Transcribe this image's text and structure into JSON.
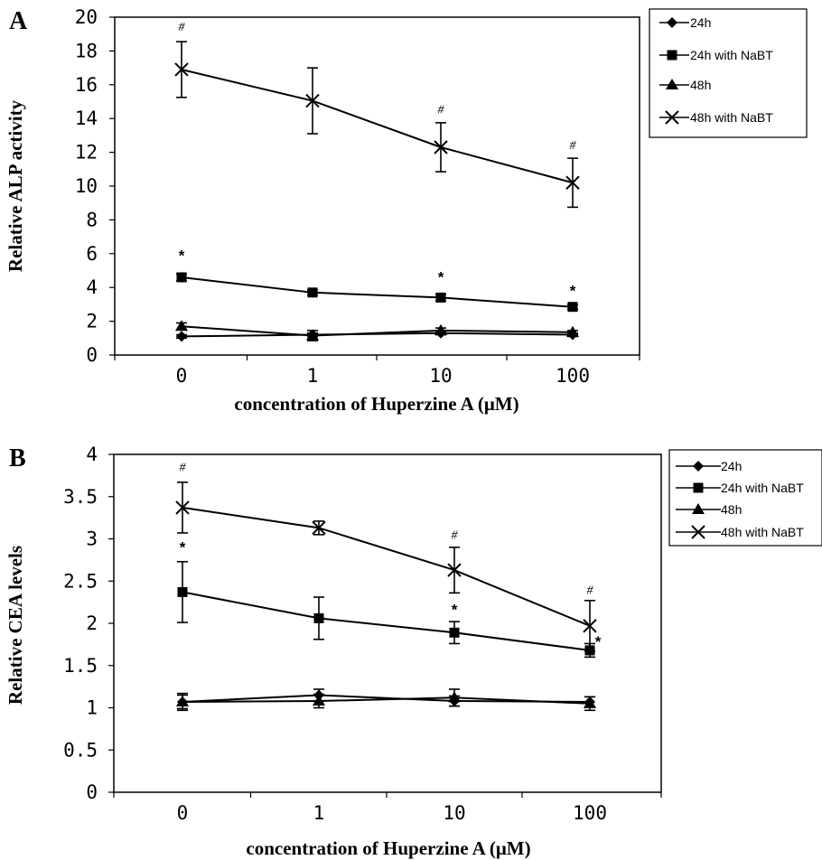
{
  "chart_data": [
    {
      "type": "line",
      "panel_label": "A",
      "xlabel": "concentration of Huperzine A (μM)",
      "ylabel": "Relative ALP activity",
      "categories": [
        "0",
        "1",
        "10",
        "100"
      ],
      "ylim": [
        0,
        20
      ],
      "yticks": [
        "0",
        "2",
        "4",
        "6",
        "8",
        "10",
        "12",
        "14",
        "16",
        "18",
        "20"
      ],
      "grid": false,
      "legend_position": "right",
      "series": [
        {
          "name": "24h",
          "marker": "diamond",
          "values": [
            1.1,
            1.2,
            1.3,
            1.2
          ],
          "errors": [
            0.1,
            0.1,
            0.1,
            0.1
          ]
        },
        {
          "name": "24h with NaBT",
          "marker": "square",
          "values": [
            4.6,
            3.7,
            3.4,
            2.85
          ],
          "errors": [
            0.2,
            0.15,
            0.2,
            0.15
          ]
        },
        {
          "name": "48h",
          "marker": "triangle",
          "values": [
            1.7,
            1.15,
            1.45,
            1.35
          ],
          "errors": [
            0.2,
            0.3,
            0.15,
            0.1
          ]
        },
        {
          "name": "48h with NaBT",
          "marker": "x",
          "values": [
            16.9,
            15.05,
            12.3,
            10.2
          ],
          "errors": [
            1.65,
            1.95,
            1.45,
            1.45
          ]
        }
      ],
      "annotations": [
        {
          "text": "#",
          "kind": "hash",
          "category_index": 0,
          "y": 19.2
        },
        {
          "text": "#",
          "kind": "hash",
          "category_index": 2,
          "y": 14.3
        },
        {
          "text": "#",
          "kind": "hash",
          "category_index": 3,
          "y": 12.2
        },
        {
          "text": "*",
          "kind": "star",
          "category_index": 0,
          "y": 5.6
        },
        {
          "text": "*",
          "kind": "star",
          "category_index": 2,
          "y": 4.3
        },
        {
          "text": "*",
          "kind": "star",
          "category_index": 3,
          "y": 3.5
        }
      ]
    },
    {
      "type": "line",
      "panel_label": "B",
      "xlabel": "concentration of Huperzine A (μM)",
      "ylabel": "Relative CEA levels",
      "categories": [
        "0",
        "1",
        "10",
        "100"
      ],
      "ylim": [
        0,
        4
      ],
      "yticks": [
        "0",
        "0.5",
        "1",
        "1.5",
        "2",
        "2.5",
        "3",
        "3.5",
        "4"
      ],
      "grid": false,
      "legend_position": "right",
      "series": [
        {
          "name": "24h",
          "marker": "diamond",
          "values": [
            1.07,
            1.15,
            1.08,
            1.07
          ],
          "errors": [
            0.08,
            0.07,
            0.06,
            0.06
          ]
        },
        {
          "name": "24h with NaBT",
          "marker": "square",
          "values": [
            2.37,
            2.06,
            1.89,
            1.68
          ],
          "errors": [
            0.36,
            0.25,
            0.13,
            0.08
          ]
        },
        {
          "name": "48h",
          "marker": "triangle",
          "values": [
            1.07,
            1.08,
            1.12,
            1.05
          ],
          "errors": [
            0.1,
            0.08,
            0.1,
            0.08
          ]
        },
        {
          "name": "48h with NaBT",
          "marker": "x",
          "values": [
            3.37,
            3.13,
            2.63,
            1.97
          ],
          "errors": [
            0.3,
            0.08,
            0.27,
            0.3
          ]
        }
      ],
      "annotations": [
        {
          "text": "#",
          "kind": "hash",
          "category_index": 0,
          "y": 3.8
        },
        {
          "text": "#",
          "kind": "hash",
          "category_index": 2,
          "y": 3.0
        },
        {
          "text": "#",
          "kind": "hash",
          "category_index": 3,
          "y": 2.35
        },
        {
          "text": "*",
          "kind": "star",
          "category_index": 0,
          "y": 2.84
        },
        {
          "text": "*",
          "kind": "star",
          "category_index": 2,
          "y": 2.1
        },
        {
          "text": "*",
          "kind": "star",
          "category_index": 3,
          "y": 1.72,
          "dx_cat": 0.06
        }
      ]
    }
  ]
}
